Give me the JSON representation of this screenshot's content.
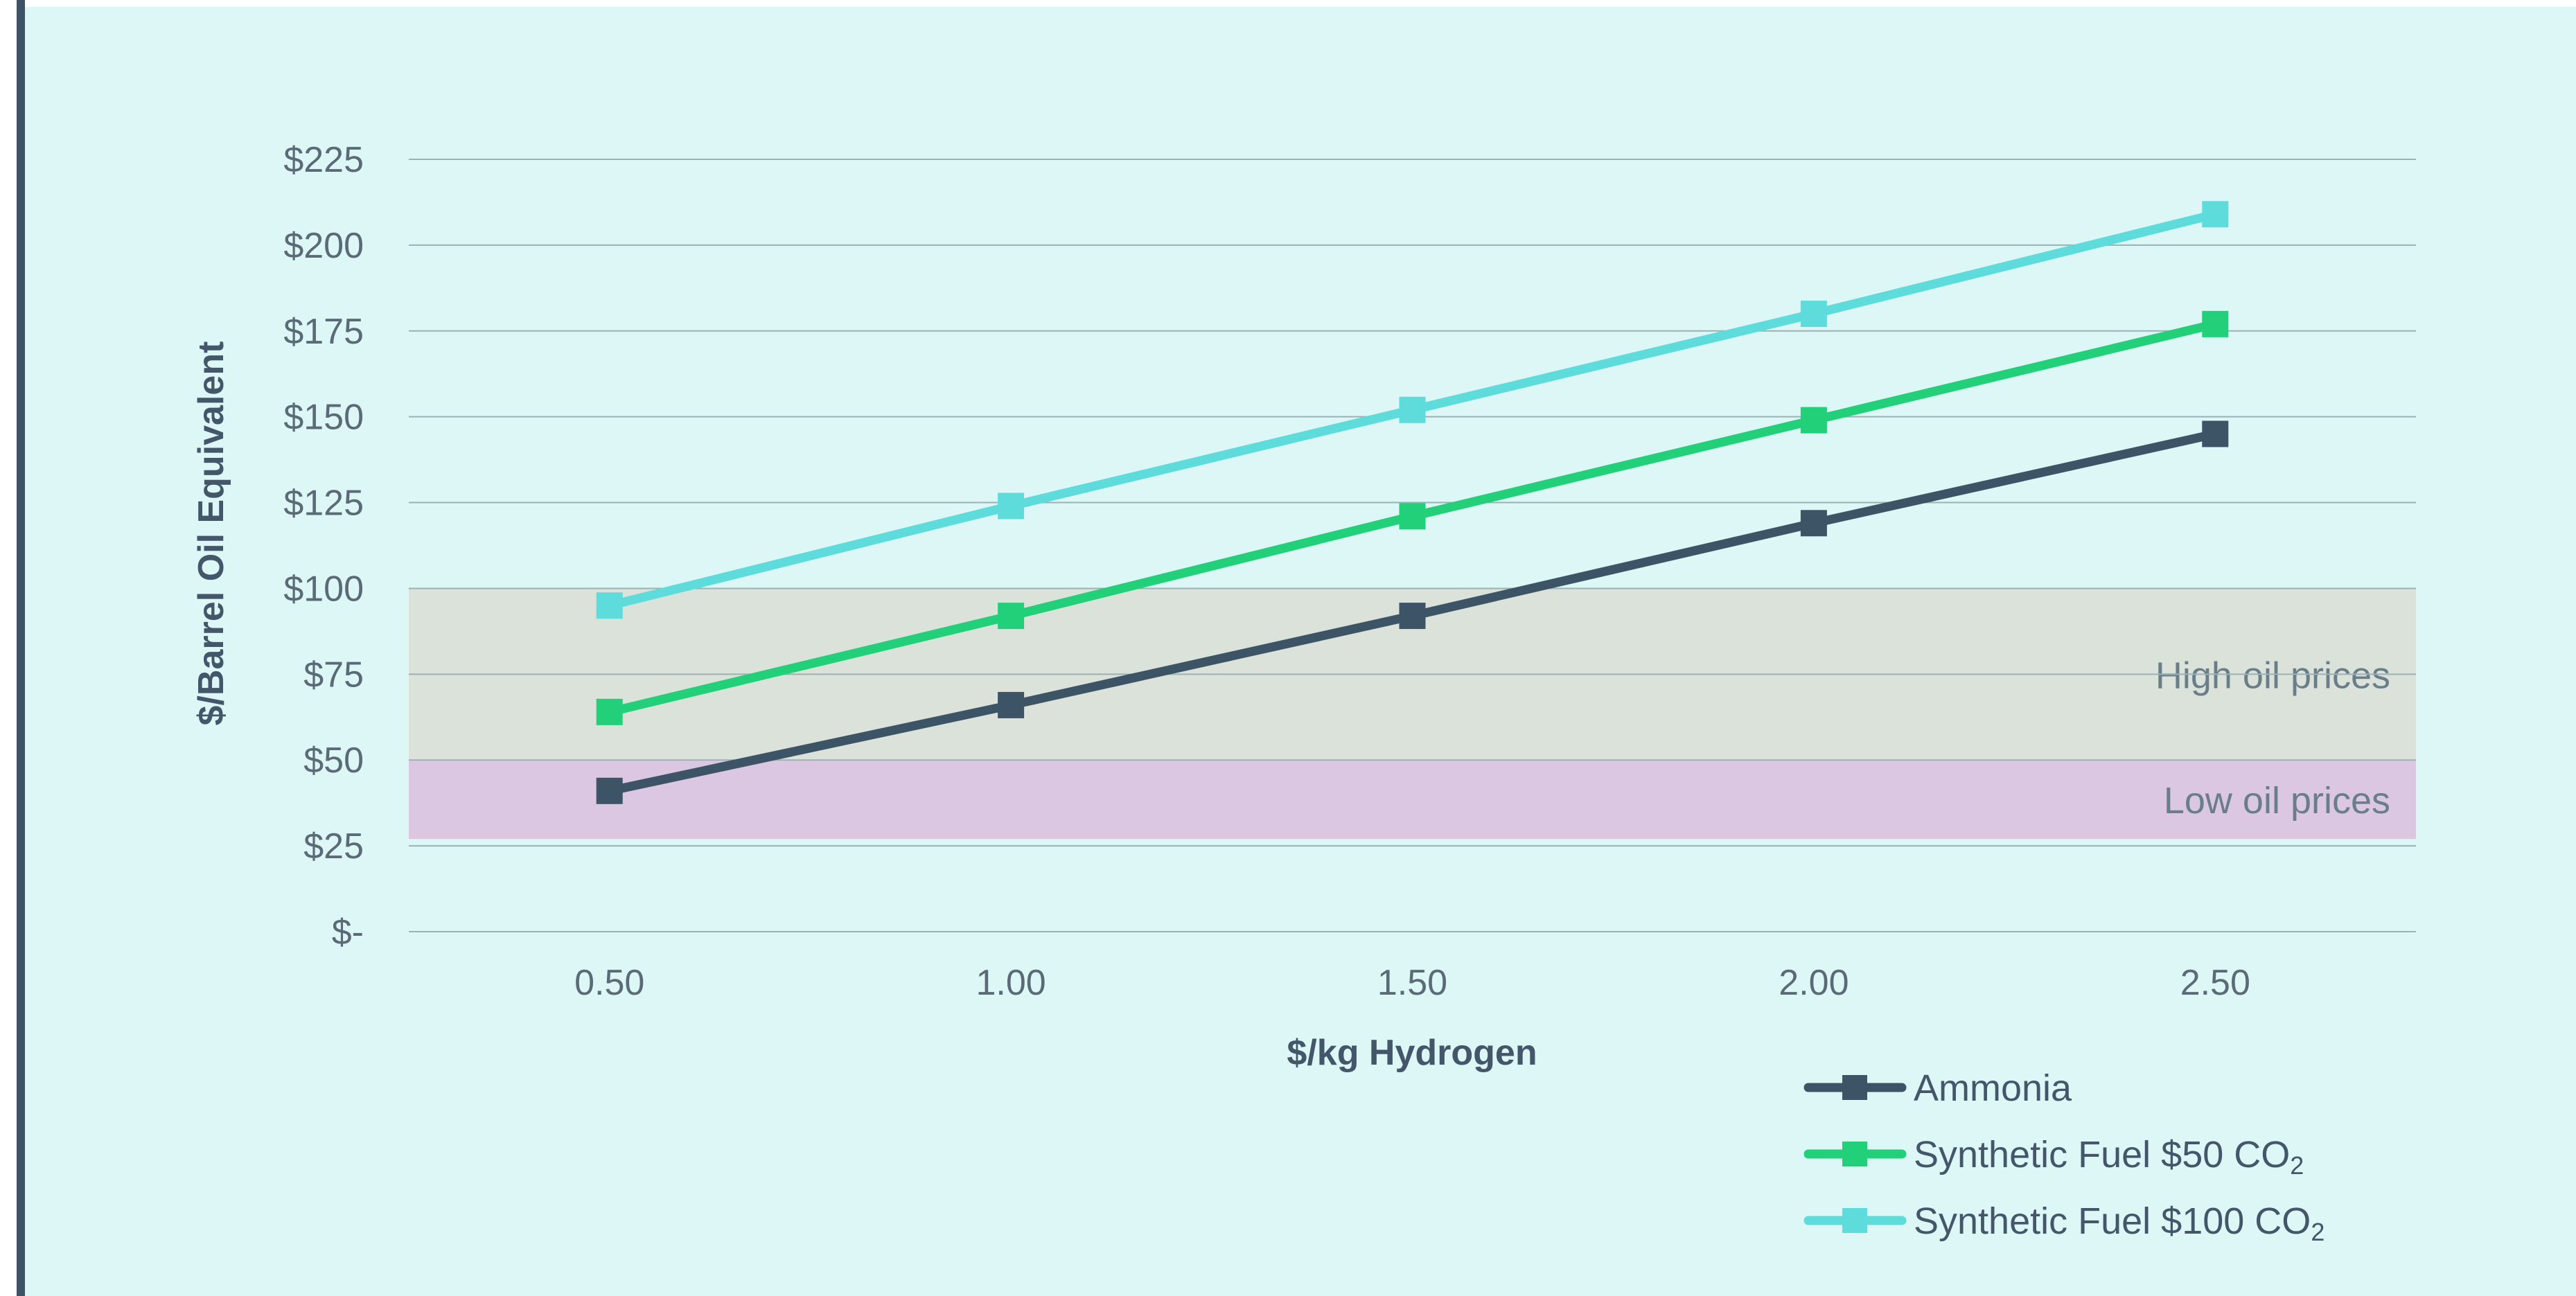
{
  "chart_data": {
    "type": "line",
    "title": "",
    "xlabel": "$/kg Hydrogen",
    "ylabel": "$/Barrel Oil Equivalent",
    "x": [
      "0.50",
      "1.00",
      "1.50",
      "2.00",
      "2.50"
    ],
    "xlim": [
      0.25,
      2.75
    ],
    "ylim": [
      0,
      225
    ],
    "yticks": [
      "$-",
      "$25",
      "$50",
      "$75",
      "$100",
      "$125",
      "$150",
      "$175",
      "$200",
      "$225"
    ],
    "grid": true,
    "legend_position": "bottom-right",
    "series": [
      {
        "name": "Ammonia",
        "base": "Ammonia",
        "sub": "",
        "color": "#3d5366",
        "values": [
          41,
          66,
          92,
          119,
          145
        ]
      },
      {
        "name": "Synthetic Fuel $50 CO2",
        "base": "Synthetic Fuel $50 CO",
        "sub": "2",
        "color": "#22d07a",
        "values": [
          64,
          92,
          121,
          149,
          177
        ]
      },
      {
        "name": "Synthetic Fuel $100 CO2",
        "base": "Synthetic Fuel $100 CO",
        "sub": "2",
        "color": "#5ddcdb",
        "values": [
          95,
          124,
          152,
          180,
          209
        ]
      }
    ],
    "bands": [
      {
        "label": "High oil prices",
        "from": 50,
        "to": 100,
        "color": "#dbe2da"
      },
      {
        "label": "Low oil prices",
        "from": 27,
        "to": 50,
        "color": "#dbc7e1"
      }
    ]
  }
}
